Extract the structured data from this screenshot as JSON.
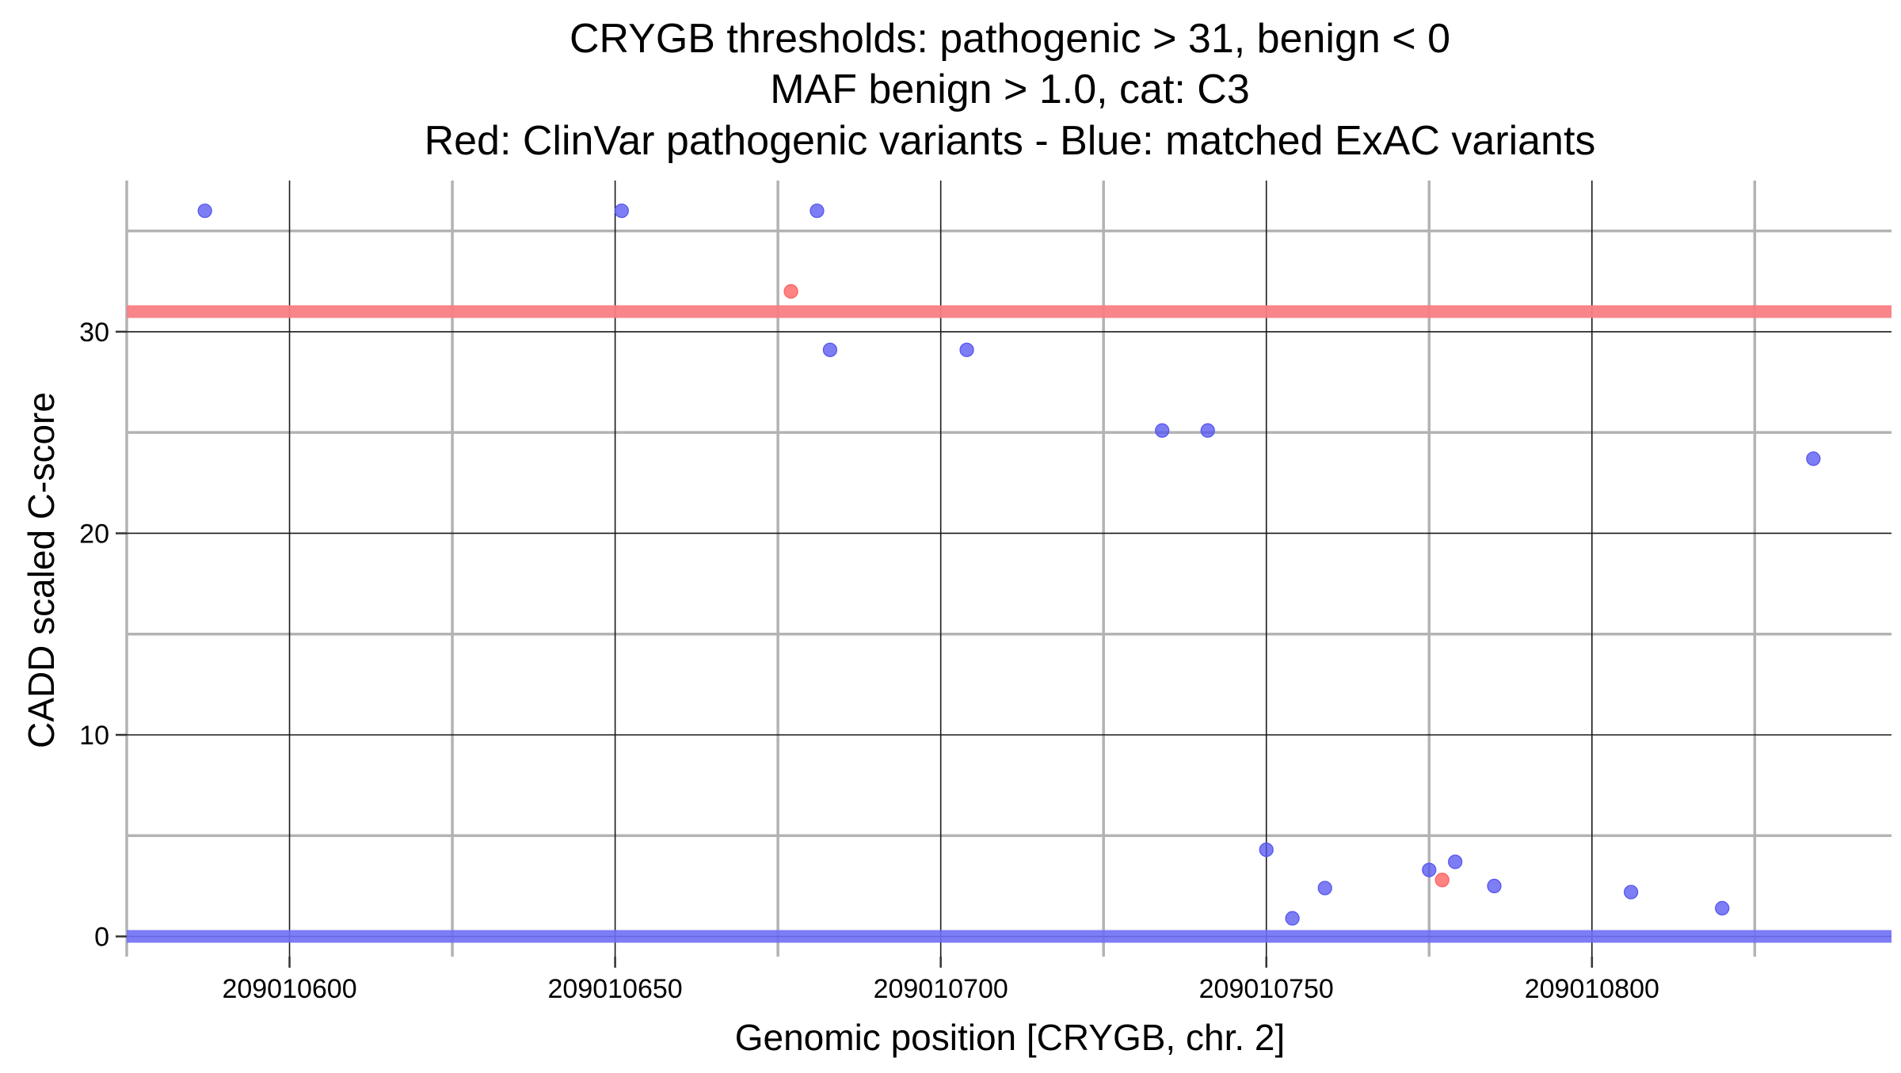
{
  "chart_data": {
    "type": "scatter",
    "title": [
      "CRYGB thresholds: pathogenic > 31, benign < 0",
      "MAF benign > 1.0, cat: C3",
      "Red: ClinVar pathogenic variants - Blue: matched ExAC variants"
    ],
    "xlabel": "Genomic position [CRYGB, chr. 2]",
    "ylabel": "CADD scaled C-score",
    "xlim": [
      209010575,
      209010846
    ],
    "ylim": [
      -1,
      37.5
    ],
    "x_major_ticks": [
      209010600,
      209010650,
      209010700,
      209010750,
      209010800
    ],
    "x_minor_ticks": [
      209010575,
      209010625,
      209010675,
      209010725,
      209010775,
      209010825
    ],
    "y_major_ticks": [
      0,
      10,
      20,
      30
    ],
    "y_minor_ticks": [
      5,
      15,
      25,
      35
    ],
    "x_tick_labels": [
      "209010600",
      "209010650",
      "209010700",
      "209010750",
      "209010800"
    ],
    "y_tick_labels": [
      "0",
      "10",
      "20",
      "30"
    ],
    "thresholds": [
      {
        "name": "pathogenic",
        "value": 31,
        "color": "#f77e83"
      },
      {
        "name": "benign",
        "value": 0,
        "color": "#6f6ff5"
      }
    ],
    "series": [
      {
        "name": "ClinVar pathogenic variants",
        "color": "#ff5a5a",
        "points": [
          {
            "x": 209010677,
            "y": 32.0
          },
          {
            "x": 209010777,
            "y": 2.8
          }
        ]
      },
      {
        "name": "matched ExAC variants",
        "color": "#5252f0",
        "points": [
          {
            "x": 209010587,
            "y": 36.0
          },
          {
            "x": 209010651,
            "y": 36.0
          },
          {
            "x": 209010681,
            "y": 36.0
          },
          {
            "x": 209010683,
            "y": 29.1
          },
          {
            "x": 209010704,
            "y": 29.1
          },
          {
            "x": 209010734,
            "y": 25.1
          },
          {
            "x": 209010741,
            "y": 25.1
          },
          {
            "x": 209010750,
            "y": 4.3
          },
          {
            "x": 209010754,
            "y": 0.9
          },
          {
            "x": 209010759,
            "y": 2.4
          },
          {
            "x": 209010775,
            "y": 3.3
          },
          {
            "x": 209010779,
            "y": 3.7
          },
          {
            "x": 209010785,
            "y": 2.5
          },
          {
            "x": 209010806,
            "y": 2.2
          },
          {
            "x": 209010820,
            "y": 1.4
          },
          {
            "x": 209010834,
            "y": 23.7
          }
        ]
      }
    ]
  }
}
